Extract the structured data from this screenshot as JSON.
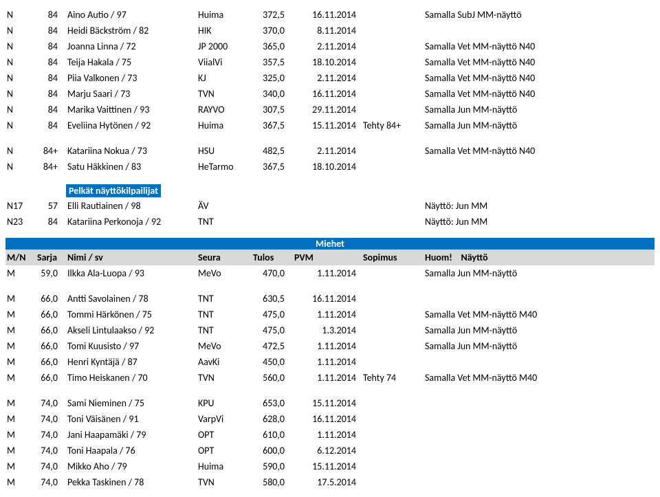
{
  "colors": {
    "band_bg": "#0070c0",
    "band_fg": "#ffffff",
    "header_bg": "#d9d9d9",
    "page_bg": "#ffffff",
    "text": "#000000"
  },
  "rows_top": [
    {
      "c1": "N",
      "c2": "84",
      "name": "Aino Autio / 97",
      "club": "Huima",
      "score": "372,5",
      "date": "16.11.2014",
      "status": "",
      "note": "Samalla SubJ MM-näyttö"
    },
    {
      "c1": "N",
      "c2": "84",
      "name": "Heidi Bäckström / 82",
      "club": "HIK",
      "score": "370,0",
      "date": "8.11.2014",
      "status": "",
      "note": ""
    },
    {
      "c1": "N",
      "c2": "84",
      "name": "Joanna Linna / 72",
      "club": "JP 2000",
      "score": "365,0",
      "date": "2.11.2014",
      "status": "",
      "note": "Samalla Vet MM-näyttö N40"
    },
    {
      "c1": "N",
      "c2": "84",
      "name": "Teija Hakala / 75",
      "club": "ViialVi",
      "score": "357,5",
      "date": "18.10.2014",
      "status": "",
      "note": "Samalla Vet MM-näyttö N40"
    },
    {
      "c1": "N",
      "c2": "84",
      "name": "Piia Valkonen / 73",
      "club": "KJ",
      "score": "325,0",
      "date": "2.11.2014",
      "status": "",
      "note": "Samalla Vet MM-näyttö N40"
    },
    {
      "c1": "N",
      "c2": "84",
      "name": "Marju Saari / 73",
      "club": "TVN",
      "score": "340,0",
      "date": "16.11.2014",
      "status": "",
      "note": "Samalla Vet MM-näyttö N40"
    },
    {
      "c1": "N",
      "c2": "84",
      "name": "Marika Vaittinen / 93",
      "club": "RAYVO",
      "score": "307,5",
      "date": "29.11.2014",
      "status": "",
      "note": "Samalla Jun MM-näyttö"
    },
    {
      "c1": "N",
      "c2": "84",
      "name": "Eveliina Hytönen / 92",
      "club": "Huima",
      "score": "367,5",
      "date": "15.11.2014",
      "status": "Tehty 84+",
      "note": "Samalla Jun MM-näyttö"
    }
  ],
  "rows_mid": [
    {
      "c1": "N",
      "c2": "84+",
      "name": "Katariina Nokua / 73",
      "club": "HSU",
      "score": "482,5",
      "date": "2.11.2014",
      "status": "",
      "note": "Samalla Vet MM-näyttö N40"
    },
    {
      "c1": "N",
      "c2": "84+",
      "name": "Satu Häkkinen / 83",
      "club": "HeTarmo",
      "score": "367,5",
      "date": "18.10.2014",
      "status": "",
      "note": ""
    }
  ],
  "pelkat_label": "Pelkät näyttökilpailijat",
  "rows_pelkat": [
    {
      "c1": "N17",
      "c2": "57",
      "name": "Elli Rautiainen / 98",
      "club": "ÄV",
      "score": "",
      "date": "",
      "status": "",
      "note": "Näyttö: Jun MM"
    },
    {
      "c1": "N23",
      "c2": "84",
      "name": "Katariina Perkonoja / 92",
      "club": "TNT",
      "score": "",
      "date": "",
      "status": "",
      "note": "Näyttö: Jun MM"
    }
  ],
  "miehet_label": "Miehet",
  "header": {
    "c1": "M/N",
    "c2": "Sarja",
    "name": "Nimi / sv",
    "club": "Seura",
    "score": "Tulos",
    "date": "PVM",
    "status": "Sopimus",
    "huom": "Huom!",
    "naytto": "Näyttö"
  },
  "rows_m_first": [
    {
      "c1": "M",
      "c2": "59,0",
      "name": "Ilkka Ala-Luopa / 93",
      "club": "MeVo",
      "score": "470,0",
      "date": "1.11.2014",
      "status": "",
      "note": "Samalla Jun MM-näyttö"
    }
  ],
  "rows_m_66": [
    {
      "c1": "M",
      "c2": "66,0",
      "name": "Antti Savolainen / 78",
      "club": "TNT",
      "score": "630,5",
      "date": "16.11.2014",
      "status": "",
      "note": ""
    },
    {
      "c1": "M",
      "c2": "66,0",
      "name": "Tommi Härkönen / 75",
      "club": "TNT",
      "score": "475,0",
      "date": "1.11.2014",
      "status": "",
      "note": "Samalla Vet MM-näyttö M40"
    },
    {
      "c1": "M",
      "c2": "66,0",
      "name": "Akseli Lintulaakso / 92",
      "club": "TNT",
      "score": "475,0",
      "date": "1.3.2014",
      "status": "",
      "note": "Samalla Jun MM-näyttö"
    },
    {
      "c1": "M",
      "c2": "66,0",
      "name": "Tomi Kuusisto / 97",
      "club": "MeVo",
      "score": "472,5",
      "date": "1.11.2014",
      "status": "",
      "note": "Samalla Jun MM-näyttö"
    },
    {
      "c1": "M",
      "c2": "66,0",
      "name": "Henri Kyntäjä / 87",
      "club": "AavKi",
      "score": "450,0",
      "date": "1.11.2014",
      "status": "",
      "note": ""
    },
    {
      "c1": "M",
      "c2": "66,0",
      "name": "Timo Heiskanen / 70",
      "club": "TVN",
      "score": "560,0",
      "date": "1.11.2014",
      "status": "Tehty 74",
      "note": "Samalla Vet MM-näyttö M40"
    }
  ],
  "rows_m_74": [
    {
      "c1": "M",
      "c2": "74,0",
      "name": "Sami Nieminen / 75",
      "club": "KPU",
      "score": "653,0",
      "date": "15.11.2014",
      "status": "",
      "note": ""
    },
    {
      "c1": "M",
      "c2": "74,0",
      "name": "Toni Väisänen / 91",
      "club": "VarpVi",
      "score": "628,0",
      "date": "16.11.2014",
      "status": "",
      "note": ""
    },
    {
      "c1": "M",
      "c2": "74,0",
      "name": "Jani Haapamäki / 79",
      "club": "OPT",
      "score": "610,0",
      "date": "1.11.2014",
      "status": "",
      "note": ""
    },
    {
      "c1": "M",
      "c2": "74,0",
      "name": "Toni Haapala / 76",
      "club": "OPT",
      "score": "600,0",
      "date": "6.12.2014",
      "status": "",
      "note": ""
    },
    {
      "c1": "M",
      "c2": "74,0",
      "name": "Mikko Aho / 79",
      "club": "Huima",
      "score": "590,0",
      "date": "15.11.2014",
      "status": "",
      "note": ""
    },
    {
      "c1": "M",
      "c2": "74,0",
      "name": "Pekka Taskinen / 78",
      "club": "TVN",
      "score": "580,0",
      "date": "17.5.2014",
      "status": "",
      "note": ""
    }
  ]
}
